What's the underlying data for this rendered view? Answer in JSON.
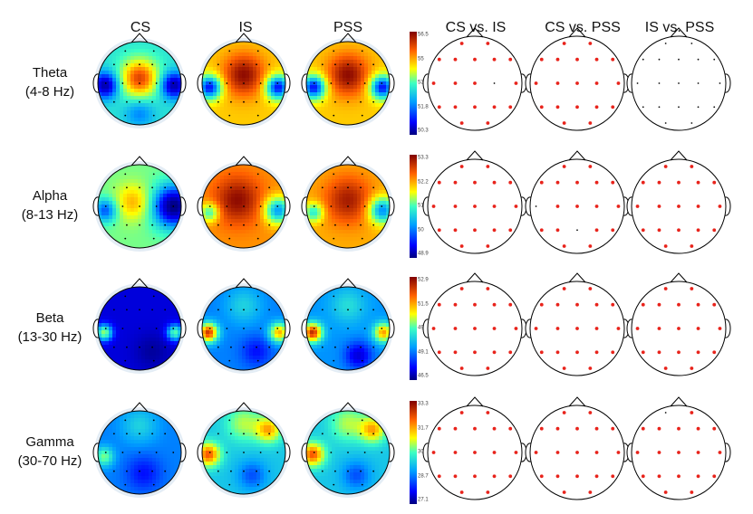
{
  "figure": {
    "columns": {
      "cs": "CS",
      "is": "IS",
      "pss": "PSS",
      "cs_vs_is": "CS vs. IS",
      "cs_vs_pss": "CS vs. PSS",
      "is_vs_pss": "IS vs. PSS"
    },
    "rows": [
      {
        "band": "Theta",
        "range": "(4-8 Hz)",
        "colorbar_ticks": [
          "56.5",
          "55",
          "53.4",
          "51.8",
          "50.3"
        ],
        "maps": {
          "cs": {
            "base": 0.45,
            "blobs": [
              {
                "dx": 0,
                "dy": -0.12,
                "r": 0.32,
                "v": 0.43
              },
              {
                "dx": -0.82,
                "dy": 0.05,
                "r": 0.22,
                "v": -0.4
              },
              {
                "dx": 0.82,
                "dy": 0.05,
                "r": 0.22,
                "v": -0.4
              },
              {
                "dx": 0,
                "dy": 0.72,
                "r": 0.25,
                "v": -0.15
              }
            ]
          },
          "is": {
            "base": 0.72,
            "blobs": [
              {
                "dx": 0,
                "dy": -0.2,
                "r": 0.35,
                "v": 0.26
              },
              {
                "dx": -0.82,
                "dy": 0.1,
                "r": 0.2,
                "v": -0.55
              },
              {
                "dx": 0.82,
                "dy": 0.1,
                "r": 0.2,
                "v": -0.55
              }
            ]
          },
          "pss": {
            "base": 0.72,
            "blobs": [
              {
                "dx": 0,
                "dy": -0.2,
                "r": 0.35,
                "v": 0.26
              },
              {
                "dx": -0.82,
                "dy": 0.1,
                "r": 0.2,
                "v": -0.55
              },
              {
                "dx": 0.82,
                "dy": 0.1,
                "r": 0.2,
                "v": -0.55
              }
            ]
          }
        },
        "significance": {
          "cs_vs_is": [
            1,
            1,
            1,
            1,
            1,
            1,
            1,
            1,
            1,
            1,
            0,
            1,
            1,
            1,
            1,
            1,
            1,
            1,
            1
          ],
          "cs_vs_pss": [
            1,
            1,
            1,
            1,
            1,
            1,
            1,
            1,
            1,
            1,
            1,
            1,
            1,
            1,
            1,
            1,
            1,
            1,
            1
          ],
          "is_vs_pss": [
            0,
            0,
            0,
            0,
            0,
            0,
            0,
            0,
            0,
            0,
            0,
            0,
            0,
            0,
            0,
            0,
            0,
            0,
            0
          ]
        }
      },
      {
        "band": "Alpha",
        "range": "(8-13 Hz)",
        "colorbar_ticks": [
          "53.3",
          "52.2",
          "51.1",
          "50",
          "48.9"
        ],
        "maps": {
          "cs": {
            "base": 0.55,
            "blobs": [
              {
                "dx": -0.15,
                "dy": -0.1,
                "r": 0.3,
                "v": 0.2
              },
              {
                "dx": 0.82,
                "dy": 0,
                "r": 0.35,
                "v": -0.55
              },
              {
                "dx": -0.82,
                "dy": 0.1,
                "r": 0.2,
                "v": -0.3
              }
            ]
          },
          "is": {
            "base": 0.78,
            "blobs": [
              {
                "dx": -0.15,
                "dy": -0.15,
                "r": 0.4,
                "v": 0.2
              },
              {
                "dx": 0.82,
                "dy": 0.1,
                "r": 0.22,
                "v": -0.45
              },
              {
                "dx": -0.82,
                "dy": 0.15,
                "r": 0.16,
                "v": -0.3
              }
            ]
          },
          "pss": {
            "base": 0.75,
            "blobs": [
              {
                "dx": 0,
                "dy": -0.15,
                "r": 0.4,
                "v": 0.2
              },
              {
                "dx": 0.82,
                "dy": 0.1,
                "r": 0.22,
                "v": -0.45
              },
              {
                "dx": -0.82,
                "dy": 0.15,
                "r": 0.16,
                "v": -0.3
              }
            ]
          }
        },
        "significance": {
          "cs_vs_is": [
            1,
            1,
            1,
            1,
            1,
            1,
            1,
            1,
            1,
            1,
            1,
            1,
            1,
            1,
            1,
            1,
            1,
            1,
            1
          ],
          "cs_vs_pss": [
            1,
            1,
            1,
            1,
            1,
            1,
            1,
            0,
            1,
            1,
            1,
            1,
            1,
            1,
            0,
            1,
            1,
            1,
            1
          ],
          "is_vs_pss": [
            1,
            1,
            1,
            1,
            1,
            1,
            1,
            1,
            1,
            1,
            1,
            1,
            1,
            1,
            1,
            1,
            1,
            1,
            1
          ]
        }
      },
      {
        "band": "Beta",
        "range": "(13-30 Hz)",
        "colorbar_ticks": [
          "52.9",
          "51.5",
          "49.7",
          "49.1",
          "46.5"
        ],
        "maps": {
          "cs": {
            "base": 0.12,
            "blobs": [
              {
                "dx": -0.85,
                "dy": 0.1,
                "r": 0.14,
                "v": 0.45
              },
              {
                "dx": 0.85,
                "dy": 0.1,
                "r": 0.14,
                "v": 0.4
              },
              {
                "dx": 0.3,
                "dy": 0.55,
                "r": 0.3,
                "v": -0.08
              }
            ]
          },
          "is": {
            "base": 0.3,
            "blobs": [
              {
                "dx": -0.85,
                "dy": 0.1,
                "r": 0.16,
                "v": 0.6
              },
              {
                "dx": 0.85,
                "dy": 0.1,
                "r": 0.16,
                "v": 0.45
              },
              {
                "dx": 0,
                "dy": -0.55,
                "r": 0.3,
                "v": 0.12
              },
              {
                "dx": 0.3,
                "dy": 0.55,
                "r": 0.25,
                "v": -0.12
              }
            ]
          },
          "pss": {
            "base": 0.32,
            "blobs": [
              {
                "dx": -0.85,
                "dy": 0.1,
                "r": 0.16,
                "v": 0.6
              },
              {
                "dx": 0.85,
                "dy": 0.1,
                "r": 0.16,
                "v": 0.45
              },
              {
                "dx": 0,
                "dy": -0.55,
                "r": 0.3,
                "v": 0.12
              },
              {
                "dx": 0.25,
                "dy": 0.65,
                "r": 0.22,
                "v": -0.2
              }
            ]
          }
        },
        "significance": {
          "cs_vs_is": [
            1,
            1,
            1,
            1,
            1,
            1,
            1,
            1,
            1,
            1,
            1,
            1,
            1,
            1,
            1,
            1,
            1,
            1,
            1
          ],
          "cs_vs_pss": [
            1,
            1,
            1,
            1,
            1,
            1,
            1,
            1,
            1,
            1,
            1,
            1,
            1,
            1,
            1,
            1,
            1,
            1,
            1
          ],
          "is_vs_pss": [
            1,
            1,
            1,
            1,
            1,
            1,
            1,
            1,
            1,
            1,
            1,
            1,
            1,
            1,
            1,
            1,
            1,
            1,
            1
          ]
        }
      },
      {
        "band": "Gamma",
        "range": "(30-70 Hz)",
        "colorbar_ticks": [
          "33.3",
          "31.7",
          "30.2",
          "28.7",
          "27.1"
        ],
        "maps": {
          "cs": {
            "base": 0.3,
            "blobs": [
              {
                "dx": 0,
                "dy": -0.65,
                "r": 0.3,
                "v": 0.12
              },
              {
                "dx": -0.85,
                "dy": 0.1,
                "r": 0.16,
                "v": 0.25
              },
              {
                "dx": 0.1,
                "dy": 0.5,
                "r": 0.3,
                "v": -0.12
              }
            ]
          },
          "is": {
            "base": 0.4,
            "blobs": [
              {
                "dx": -0.85,
                "dy": 0.05,
                "r": 0.2,
                "v": 0.45
              },
              {
                "dx": 0.6,
                "dy": -0.55,
                "r": 0.22,
                "v": 0.35
              },
              {
                "dx": 0,
                "dy": -0.7,
                "r": 0.3,
                "v": 0.2
              },
              {
                "dx": 0.2,
                "dy": 0.55,
                "r": 0.25,
                "v": -0.15
              }
            ]
          },
          "pss": {
            "base": 0.4,
            "blobs": [
              {
                "dx": -0.85,
                "dy": 0.05,
                "r": 0.2,
                "v": 0.45
              },
              {
                "dx": 0.6,
                "dy": -0.55,
                "r": 0.22,
                "v": 0.35
              },
              {
                "dx": 0,
                "dy": -0.7,
                "r": 0.3,
                "v": 0.2
              },
              {
                "dx": 0.2,
                "dy": 0.55,
                "r": 0.25,
                "v": -0.15
              }
            ]
          }
        },
        "significance": {
          "cs_vs_is": [
            1,
            1,
            1,
            1,
            1,
            1,
            1,
            1,
            1,
            1,
            1,
            1,
            1,
            1,
            1,
            1,
            1,
            1,
            1
          ],
          "cs_vs_pss": [
            1,
            1,
            1,
            1,
            1,
            1,
            1,
            1,
            1,
            1,
            1,
            1,
            1,
            1,
            1,
            1,
            1,
            1,
            1
          ],
          "is_vs_pss": [
            0,
            1,
            1,
            1,
            1,
            1,
            1,
            1,
            1,
            1,
            1,
            1,
            1,
            1,
            1,
            1,
            1,
            1,
            1
          ]
        }
      }
    ],
    "colors": {
      "significant": "#e8231b",
      "not_significant": "#111111",
      "outline": "#000000",
      "colormap": [
        "#00007f",
        "#0000ff",
        "#00a0ff",
        "#3cffc3",
        "#ffff00",
        "#ff6000",
        "#800000"
      ]
    }
  }
}
